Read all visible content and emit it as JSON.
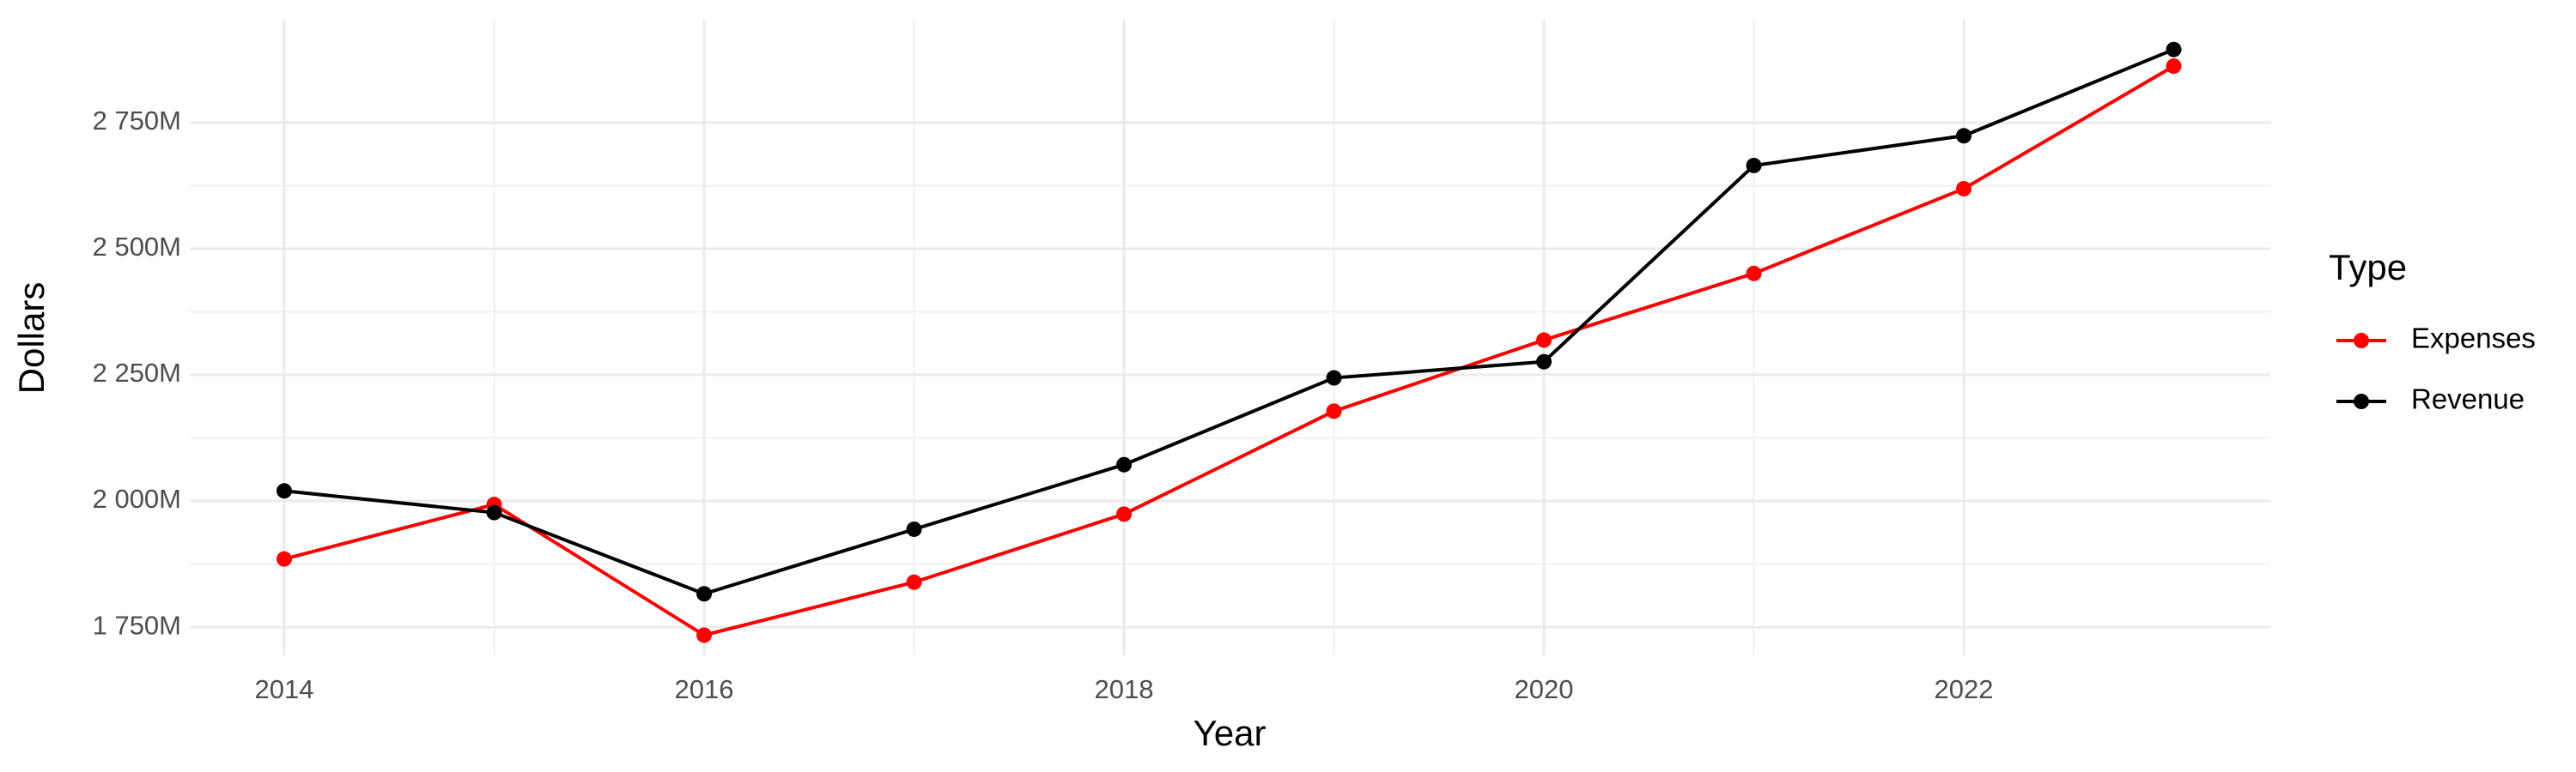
{
  "chart_data": {
    "type": "line",
    "x_label": "Year",
    "y_label": "Dollars",
    "x": [
      2014,
      2015,
      2016,
      2017,
      2018,
      2019,
      2020,
      2021,
      2022,
      2023
    ],
    "series": [
      {
        "name": "Expenses",
        "color": "#ff0000",
        "values": [
          1885,
          1993,
          1734,
          1839,
          1974,
          2178,
          2319,
          2451,
          2619,
          2862
        ]
      },
      {
        "name": "Revenue",
        "color": "#000000",
        "values": [
          2020,
          1977,
          1816,
          1944,
          2072,
          2244,
          2276,
          2665,
          2724,
          2895
        ]
      }
    ],
    "xlim": [
      2013.55,
      2023.46
    ],
    "xticks": [
      2014,
      2016,
      2018,
      2020,
      2022
    ],
    "ylim": [
      1694,
      2954
    ],
    "yticks": [
      {
        "value": 1750,
        "label": "1 750M"
      },
      {
        "value": 2000,
        "label": "2 000M"
      },
      {
        "value": 2250,
        "label": "2 250M"
      },
      {
        "value": 2500,
        "label": "2 500M"
      },
      {
        "value": 2750,
        "label": "2 750M"
      }
    ],
    "grid": true,
    "minor_grid": true,
    "legend_title": "Type",
    "legend_position": "right"
  }
}
